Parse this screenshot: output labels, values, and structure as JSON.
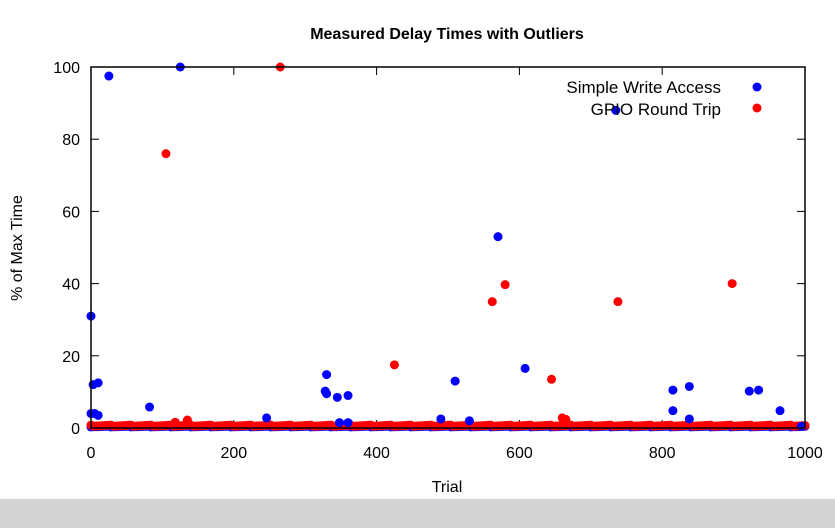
{
  "chart_data": {
    "type": "scatter",
    "title": "Measured Delay Times with Outliers",
    "xlabel": "Trial",
    "ylabel": "% of Max Time",
    "xlim": [
      0,
      1000
    ],
    "ylim": [
      0,
      100
    ],
    "xticks": [
      0,
      200,
      400,
      600,
      800,
      1000
    ],
    "yticks": [
      0,
      20,
      40,
      60,
      80,
      100
    ],
    "grid": false,
    "legend_position": "top-right",
    "series": [
      {
        "name": "Simple Write Access",
        "color": "#0000ff",
        "baseline": {
          "x_range": [
            0,
            1000
          ],
          "y_approx": 0.3
        },
        "points": [
          {
            "x": 0,
            "y": 31
          },
          {
            "x": 0,
            "y": 4
          },
          {
            "x": 3,
            "y": 12
          },
          {
            "x": 5,
            "y": 4
          },
          {
            "x": 10,
            "y": 12.5
          },
          {
            "x": 10,
            "y": 3.5
          },
          {
            "x": 25,
            "y": 97.5
          },
          {
            "x": 82,
            "y": 5.8
          },
          {
            "x": 125,
            "y": 100
          },
          {
            "x": 246,
            "y": 2.8
          },
          {
            "x": 328,
            "y": 10.2
          },
          {
            "x": 330,
            "y": 9.5
          },
          {
            "x": 330,
            "y": 14.8
          },
          {
            "x": 345,
            "y": 8.5
          },
          {
            "x": 348,
            "y": 1.5
          },
          {
            "x": 360,
            "y": 9
          },
          {
            "x": 360,
            "y": 1.5
          },
          {
            "x": 490,
            "y": 2.5
          },
          {
            "x": 510,
            "y": 13
          },
          {
            "x": 530,
            "y": 2
          },
          {
            "x": 570,
            "y": 53
          },
          {
            "x": 608,
            "y": 16.5
          },
          {
            "x": 735,
            "y": 88
          },
          {
            "x": 815,
            "y": 10.5
          },
          {
            "x": 815,
            "y": 4.8
          },
          {
            "x": 838,
            "y": 11.5
          },
          {
            "x": 838,
            "y": 2.5
          },
          {
            "x": 922,
            "y": 10.2
          },
          {
            "x": 935,
            "y": 10.5
          },
          {
            "x": 965,
            "y": 4.8
          },
          {
            "x": 995,
            "y": 0.5
          }
        ]
      },
      {
        "name": "GPIO Round Trip",
        "color": "#ff0000",
        "baseline": {
          "x_range": [
            0,
            1000
          ],
          "y_approx": 0.5
        },
        "points": [
          {
            "x": 105,
            "y": 76
          },
          {
            "x": 265,
            "y": 100
          },
          {
            "x": 425,
            "y": 17.5
          },
          {
            "x": 562,
            "y": 35
          },
          {
            "x": 580,
            "y": 39.7
          },
          {
            "x": 645,
            "y": 13.5
          },
          {
            "x": 738,
            "y": 35
          },
          {
            "x": 898,
            "y": 40
          },
          {
            "x": 135,
            "y": 2.2
          },
          {
            "x": 118,
            "y": 1.6
          },
          {
            "x": 660,
            "y": 2.8
          },
          {
            "x": 665,
            "y": 2.4
          }
        ]
      }
    ]
  }
}
